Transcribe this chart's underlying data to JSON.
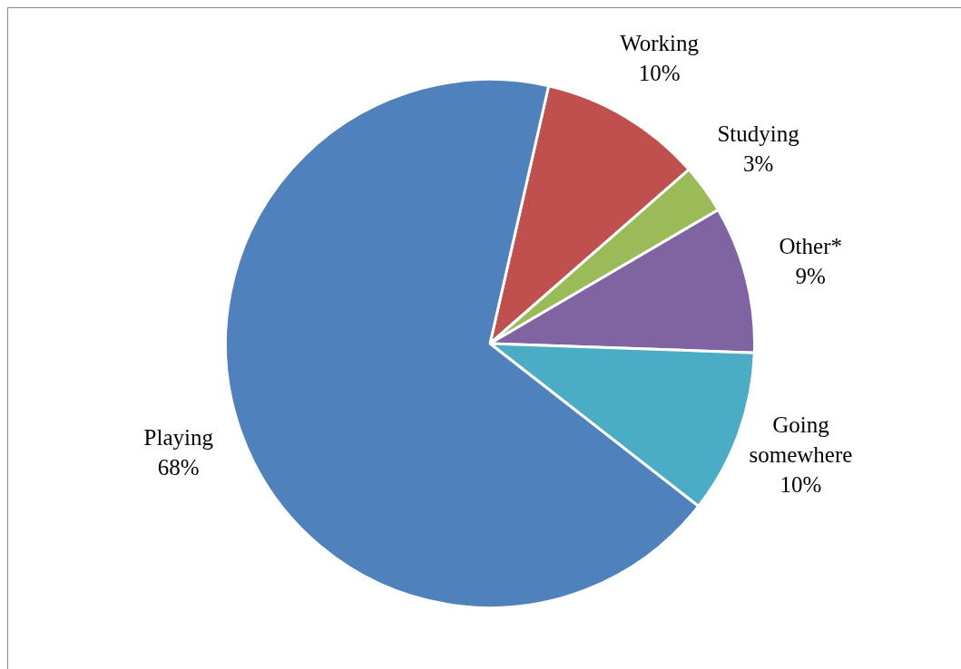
{
  "chart_data": {
    "type": "pie",
    "categories": [
      "Working",
      "Studying",
      "Other*",
      "Going somewhere",
      "Playing"
    ],
    "values": [
      10,
      3,
      9,
      10,
      68
    ],
    "colors": [
      "#c0504d",
      "#9bbb59",
      "#8064a2",
      "#4bacc6",
      "#4f81bd"
    ],
    "value_labels": [
      "10%",
      "3%",
      "9%",
      "10%",
      "68%"
    ],
    "legend": false
  }
}
